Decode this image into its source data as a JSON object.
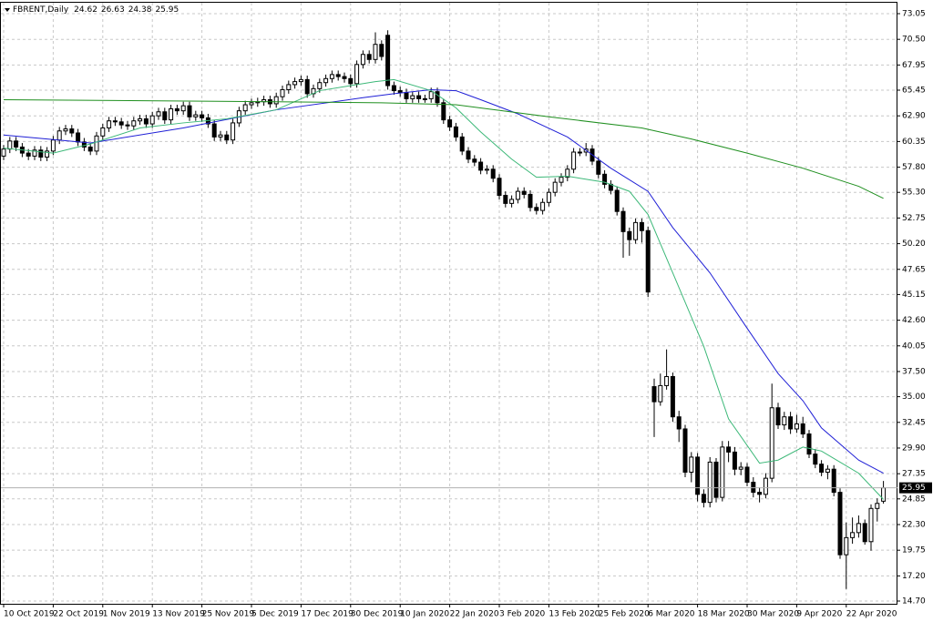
{
  "chart_data": {
    "type": "candlestick",
    "title": "FBRENT,Daily",
    "categories": [
      "10 Oct 2019",
      null,
      null,
      null,
      null,
      null,
      null,
      null,
      "22 Oct 2019",
      null,
      null,
      null,
      null,
      null,
      null,
      null,
      "1 Nov 2019",
      null,
      null,
      null,
      null,
      null,
      null,
      null,
      "13 Nov 2019",
      null,
      null,
      null,
      null,
      null,
      null,
      null,
      "25 Nov 2019",
      null,
      null,
      null,
      null,
      null,
      null,
      null,
      "5 Dec 2019",
      null,
      null,
      null,
      null,
      null,
      null,
      null,
      "17 Dec 2019",
      null,
      null,
      null,
      null,
      null,
      null,
      null,
      "30 Dec 2019",
      null,
      null,
      null,
      null,
      null,
      null,
      null,
      "10 Jan 2020",
      null,
      null,
      null,
      null,
      null,
      null,
      null,
      "22 Jan 2020",
      null,
      null,
      null,
      null,
      null,
      null,
      null,
      "3 Feb 2020",
      null,
      null,
      null,
      null,
      null,
      null,
      null,
      "13 Feb 2020",
      null,
      null,
      null,
      null,
      null,
      null,
      null,
      "25 Feb 2020",
      null,
      null,
      null,
      null,
      null,
      null,
      null,
      "6 Mar 2020",
      null,
      null,
      null,
      null,
      null,
      null,
      null,
      "18 Mar 2020",
      null,
      null,
      null,
      null,
      null,
      null,
      null,
      "30 Mar 2020",
      null,
      null,
      null,
      null,
      null,
      null,
      null,
      "9 Apr 2020",
      null,
      null,
      null,
      null,
      null,
      null,
      null,
      "22 Apr 2020",
      null,
      null,
      null,
      null,
      null,
      null
    ],
    "open": [
      58.9,
      59.6,
      60.4,
      59.8,
      59.2,
      58.9,
      59.5,
      58.8,
      59.4,
      60.5,
      61.4,
      61.6,
      61.2,
      60.3,
      59.8,
      59.4,
      60.9,
      61.7,
      62.4,
      62.3,
      62.0,
      61.9,
      62.4,
      62.6,
      62.1,
      62.9,
      63.3,
      62.5,
      63.6,
      63.4,
      63.9,
      62.8,
      63.0,
      62.7,
      62.1,
      60.8,
      61.0,
      60.5,
      62.2,
      63.4,
      64.0,
      64.2,
      64.3,
      64.5,
      64.1,
      64.8,
      65.5,
      66.0,
      66.3,
      66.5,
      65.1,
      65.6,
      66.2,
      66.6,
      67.0,
      66.8,
      66.6,
      66.1,
      68.0,
      69.0,
      68.5,
      70.0,
      70.9,
      65.9,
      65.4,
      65.2,
      64.6,
      64.9,
      64.6,
      64.6,
      65.3,
      64.2,
      62.5,
      61.8,
      60.8,
      59.4,
      58.6,
      58.3,
      57.5,
      57.6,
      56.7,
      55.0,
      54.2,
      54.6,
      55.4,
      55.1,
      53.8,
      53.5,
      54.3,
      55.3,
      56.3,
      56.8,
      57.6,
      59.3,
      59.3,
      59.6,
      58.4,
      57.1,
      56.1,
      55.5,
      53.4,
      51.4,
      50.6,
      52.3,
      51.5,
      36.0,
      34.5,
      36.1,
      37.0,
      33.0,
      31.8,
      27.5,
      29.0,
      25.3,
      24.5,
      28.5,
      25.0,
      30.0,
      29.5,
      27.8,
      28.0,
      26.5,
      25.5,
      25.3,
      26.9,
      33.9,
      32.2,
      33.0,
      31.8,
      32.3,
      31.3,
      29.3,
      28.3,
      27.5,
      27.8,
      25.5,
      19.3,
      21.0,
      21.5,
      22.4,
      20.6,
      23.9,
      24.62
    ],
    "high": [
      60.0,
      60.8,
      60.8,
      60.2,
      59.6,
      59.9,
      59.9,
      59.8,
      60.9,
      61.8,
      62.0,
      62.0,
      61.6,
      60.7,
      60.2,
      61.3,
      62.1,
      62.8,
      62.8,
      62.7,
      62.4,
      62.8,
      63.0,
      63.0,
      63.3,
      63.7,
      63.7,
      64.0,
      64.0,
      64.3,
      64.3,
      63.4,
      63.4,
      63.1,
      62.5,
      61.4,
      61.4,
      62.6,
      63.8,
      64.4,
      64.6,
      64.7,
      64.9,
      64.9,
      65.2,
      65.9,
      66.4,
      66.7,
      66.9,
      66.9,
      66.0,
      66.6,
      67.0,
      67.4,
      67.4,
      67.2,
      67.0,
      68.4,
      69.4,
      69.4,
      71.2,
      70.4,
      71.4,
      66.3,
      65.8,
      65.6,
      65.3,
      65.3,
      65.0,
      65.7,
      65.7,
      64.6,
      62.9,
      62.2,
      61.2,
      59.8,
      59.0,
      58.7,
      58.0,
      58.0,
      57.1,
      55.4,
      55.0,
      55.8,
      55.8,
      55.5,
      54.2,
      54.7,
      55.7,
      56.7,
      57.2,
      58.0,
      59.7,
      59.7,
      60.2,
      60.0,
      58.8,
      57.5,
      56.5,
      55.9,
      53.8,
      51.8,
      52.7,
      52.7,
      51.9,
      36.8,
      37.3,
      39.7,
      37.4,
      33.6,
      32.2,
      29.5,
      29.4,
      25.8,
      29.0,
      28.9,
      30.6,
      30.6,
      30.0,
      28.5,
      28.4,
      27.0,
      26.0,
      27.4,
      36.3,
      34.4,
      33.5,
      33.5,
      33.2,
      33.0,
      31.7,
      29.8,
      28.7,
      28.2,
      28.2,
      25.9,
      22.5,
      23.0,
      23.2,
      22.8,
      24.3,
      24.9,
      26.63
    ],
    "low": [
      58.5,
      59.2,
      59.4,
      58.8,
      58.5,
      58.5,
      58.4,
      58.4,
      59.0,
      60.1,
      61.0,
      60.8,
      59.9,
      59.4,
      59.0,
      59.0,
      60.5,
      61.3,
      61.9,
      61.6,
      61.5,
      61.5,
      62.0,
      61.7,
      61.7,
      62.5,
      62.1,
      62.1,
      63.0,
      63.0,
      62.4,
      62.4,
      62.3,
      61.7,
      60.4,
      60.4,
      60.1,
      60.1,
      61.8,
      63.0,
      63.6,
      63.8,
      63.9,
      63.7,
      63.7,
      64.4,
      65.1,
      65.6,
      65.9,
      64.7,
      64.7,
      65.2,
      65.8,
      66.2,
      66.4,
      66.2,
      65.7,
      65.7,
      67.6,
      68.1,
      68.1,
      68.4,
      65.5,
      65.0,
      64.8,
      64.2,
      64.2,
      64.2,
      64.2,
      64.2,
      63.8,
      62.1,
      61.4,
      60.4,
      59.0,
      58.2,
      57.9,
      57.1,
      57.1,
      56.3,
      54.6,
      53.8,
      53.8,
      54.2,
      54.7,
      53.4,
      53.1,
      53.1,
      53.9,
      54.9,
      55.9,
      56.4,
      57.2,
      58.9,
      58.9,
      58.0,
      56.7,
      55.7,
      55.1,
      53.0,
      48.8,
      49.0,
      50.2,
      50.3,
      44.9,
      31.0,
      34.1,
      35.7,
      32.5,
      30.5,
      27.0,
      26.5,
      24.6,
      24.0,
      24.0,
      24.5,
      24.6,
      28.5,
      27.2,
      27.2,
      26.1,
      25.0,
      24.5,
      24.9,
      26.5,
      31.8,
      31.7,
      31.3,
      31.4,
      30.9,
      28.9,
      27.9,
      27.1,
      26.8,
      25.1,
      18.9,
      15.9,
      20.4,
      21.0,
      20.3,
      19.7,
      22.6,
      24.38
    ],
    "close": [
      59.6,
      60.4,
      59.8,
      59.2,
      58.9,
      59.5,
      58.8,
      59.4,
      60.5,
      61.4,
      61.6,
      61.2,
      60.3,
      59.8,
      59.4,
      60.9,
      61.7,
      62.4,
      62.3,
      62.0,
      61.9,
      62.4,
      62.6,
      62.1,
      62.9,
      63.3,
      62.5,
      63.6,
      63.4,
      63.9,
      62.8,
      63.0,
      62.7,
      62.1,
      60.8,
      61.0,
      60.5,
      62.2,
      63.4,
      64.0,
      64.2,
      64.3,
      64.5,
      64.1,
      64.8,
      65.5,
      66.0,
      66.3,
      66.5,
      65.1,
      65.6,
      66.2,
      66.6,
      67.0,
      66.8,
      66.6,
      66.1,
      68.0,
      69.0,
      68.5,
      70.0,
      68.8,
      65.9,
      65.4,
      65.2,
      64.6,
      64.9,
      64.6,
      64.6,
      65.3,
      64.2,
      62.5,
      61.8,
      60.8,
      59.4,
      58.6,
      58.3,
      57.5,
      57.6,
      56.7,
      55.0,
      54.2,
      54.6,
      55.4,
      55.1,
      53.8,
      53.5,
      54.3,
      55.3,
      56.3,
      56.8,
      57.6,
      59.3,
      59.3,
      59.6,
      58.4,
      57.1,
      56.1,
      55.5,
      53.4,
      51.4,
      50.6,
      52.3,
      51.5,
      45.4,
      34.5,
      36.1,
      37.0,
      33.0,
      31.8,
      27.5,
      29.0,
      25.3,
      24.5,
      28.5,
      25.0,
      30.0,
      29.5,
      27.8,
      28.0,
      26.5,
      25.5,
      25.3,
      26.9,
      33.9,
      32.2,
      33.0,
      31.8,
      32.3,
      31.3,
      29.3,
      28.3,
      27.5,
      27.8,
      25.5,
      19.3,
      21.0,
      21.5,
      22.4,
      20.6,
      23.9,
      24.4,
      25.95
    ],
    "up_color": "#ffffff",
    "down_color": "#000000",
    "candle_outline": "#000000",
    "series": [
      {
        "color": "#1f1fd6",
        "x": [
          0,
          14,
          29,
          44,
          58,
          63,
          69,
          73,
          77,
          83,
          91,
          98,
          104,
          108,
          114,
          120,
          125,
          129,
          132,
          138,
          142
        ],
        "values": [
          61.0,
          60.2,
          61.7,
          63.5,
          64.7,
          65.1,
          65.5,
          65.4,
          64.5,
          63.1,
          60.8,
          57.7,
          55.4,
          51.8,
          47.3,
          41.8,
          37.3,
          34.6,
          31.9,
          28.7,
          27.4
        ]
      },
      {
        "color": "#3cb878",
        "x": [
          0,
          8,
          14,
          22,
          29,
          36,
          44,
          51,
          60,
          63,
          69,
          73,
          77,
          82,
          86,
          91,
          97,
          101,
          104,
          108,
          113,
          117,
          122,
          125,
          129,
          132,
          138,
          142
        ],
        "values": [
          59.7,
          59.2,
          60.1,
          61.7,
          62.2,
          62.6,
          63.5,
          65.4,
          66.3,
          66.5,
          65.4,
          63.7,
          61.3,
          58.6,
          56.8,
          56.9,
          56.3,
          55.4,
          53.1,
          47.3,
          40.0,
          32.8,
          28.4,
          28.7,
          30.0,
          29.6,
          27.4,
          24.8
        ]
      },
      {
        "color": "#1f8f1f",
        "x": [
          0,
          44,
          61,
          73,
          88,
          103,
          111,
          120,
          129,
          138,
          142
        ],
        "values": [
          64.5,
          64.3,
          64.2,
          64.0,
          62.8,
          61.7,
          60.6,
          59.2,
          57.7,
          55.9,
          54.7
        ]
      }
    ],
    "ylim": [
      14.7,
      73.05
    ],
    "yticks": [
      {
        "value": 73.05,
        "label": "73.05"
      },
      {
        "value": 70.5,
        "label": "70.50"
      },
      {
        "value": 67.95,
        "label": "67.95"
      },
      {
        "value": 65.45,
        "label": "65.45"
      },
      {
        "value": 62.9,
        "label": "62.90"
      },
      {
        "value": 60.35,
        "label": "60.35"
      },
      {
        "value": 57.8,
        "label": "57.80"
      },
      {
        "value": 55.3,
        "label": "55.30"
      },
      {
        "value": 52.75,
        "label": "52.75"
      },
      {
        "value": 50.2,
        "label": "50.20"
      },
      {
        "value": 47.65,
        "label": "47.65"
      },
      {
        "value": 45.15,
        "label": "45.15"
      },
      {
        "value": 42.6,
        "label": "42.60"
      },
      {
        "value": 40.05,
        "label": "40.05"
      },
      {
        "value": 37.5,
        "label": "37.50"
      },
      {
        "value": 35.0,
        "label": "35.00"
      },
      {
        "value": 32.45,
        "label": "32.45"
      },
      {
        "value": 29.9,
        "label": "29.90"
      },
      {
        "value": 27.35,
        "label": "27.35"
      },
      {
        "value": 24.85,
        "label": "24.85"
      },
      {
        "value": 22.3,
        "label": "22.30"
      },
      {
        "value": 19.75,
        "label": "19.75"
      },
      {
        "value": 17.2,
        "label": "17.20"
      },
      {
        "value": 14.7,
        "label": "14.70"
      }
    ],
    "grid": true
  }
}
